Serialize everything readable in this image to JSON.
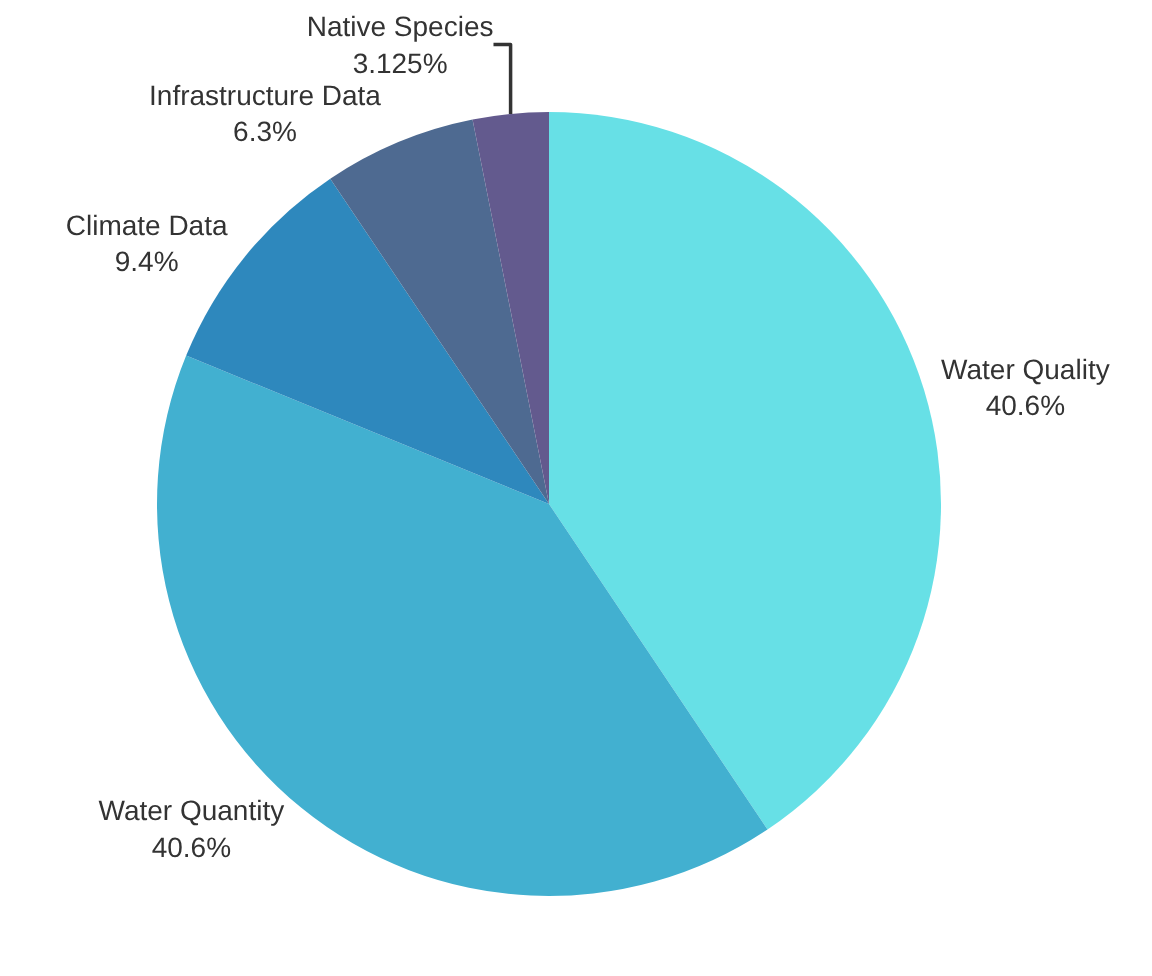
{
  "chart_data": {
    "type": "pie",
    "categories": [
      "Water Quality",
      "Water Quantity",
      "Climate Data",
      "Infrastructure Data",
      "Native Species"
    ],
    "values": [
      40.6,
      40.6,
      9.4,
      6.3,
      3.125
    ],
    "value_labels": [
      "40.6%",
      "40.6%",
      "9.4%",
      "6.3%",
      "3.125%"
    ],
    "colors": [
      "#67e0e6",
      "#42b0d0",
      "#2e88bd",
      "#4e6a91",
      "#635a8e"
    ],
    "legend": false
  }
}
